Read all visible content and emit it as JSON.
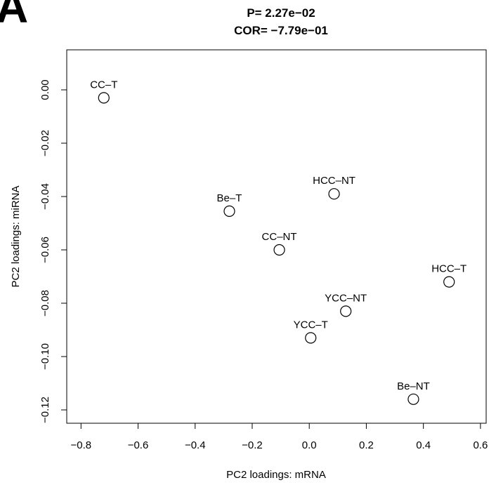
{
  "panel_letter": "A",
  "chart_data": {
    "type": "scatter",
    "title": "P= 2.27e−02",
    "subtitle": "COR= −7.79e−01",
    "xlabel": "PC2 loadings: mRNA",
    "ylabel": "PC2 loadings: miRNA",
    "xlim": [
      -0.85,
      0.62
    ],
    "ylim": [
      -0.125,
      0.015
    ],
    "xticks": [
      -0.8,
      -0.6,
      -0.4,
      -0.2,
      0.0,
      0.2,
      0.4,
      0.6
    ],
    "xtick_labels": [
      "−0.8",
      "−0.6",
      "−0.4",
      "−0.2",
      "0.0",
      "0.2",
      "0.4",
      "0.6"
    ],
    "yticks": [
      0.0,
      -0.02,
      -0.04,
      -0.06,
      -0.08,
      -0.1,
      -0.12
    ],
    "ytick_labels": [
      "0.00",
      "−0.02",
      "−0.04",
      "−0.06",
      "−0.08",
      "−0.10",
      "−0.12"
    ],
    "grid": false,
    "marker": "open-circle",
    "points": [
      {
        "label": "CC–T",
        "x": -0.72,
        "y": -0.003
      },
      {
        "label": "Be–T",
        "x": -0.28,
        "y": -0.0455
      },
      {
        "label": "HCC–NT",
        "x": 0.087,
        "y": -0.039
      },
      {
        "label": "CC–NT",
        "x": -0.105,
        "y": -0.06
      },
      {
        "label": "HCC–T",
        "x": 0.49,
        "y": -0.072
      },
      {
        "label": "YCC–NT",
        "x": 0.128,
        "y": -0.083
      },
      {
        "label": "YCC–T",
        "x": 0.005,
        "y": -0.093
      },
      {
        "label": "Be–NT",
        "x": 0.365,
        "y": -0.116
      }
    ]
  }
}
